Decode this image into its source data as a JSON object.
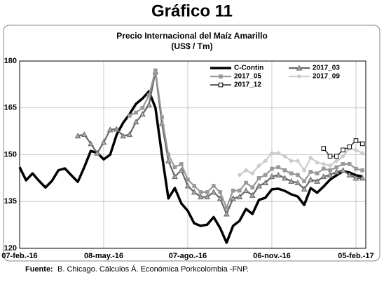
{
  "header": "Gráfico 11",
  "chart_data": {
    "type": "line",
    "title": "Precio Internacional del Maíz Amarillo",
    "subtitle": "(US$ / Tm)",
    "categories": [
      "07-feb.-16",
      null,
      null,
      null,
      null,
      null,
      null,
      null,
      null,
      null,
      null,
      null,
      null,
      "08-may.-16",
      null,
      null,
      null,
      null,
      null,
      null,
      null,
      null,
      null,
      null,
      null,
      null,
      "07-ago.-16",
      null,
      null,
      null,
      null,
      null,
      null,
      null,
      null,
      null,
      null,
      null,
      null,
      "06-nov.-16",
      null,
      null,
      null,
      null,
      null,
      null,
      null,
      null,
      null,
      null,
      null,
      null,
      "05-feb.-17",
      null
    ],
    "ylim": [
      120,
      180
    ],
    "yticks": [
      120,
      135,
      150,
      165,
      180
    ],
    "grid": true,
    "legend": "upper right",
    "series": [
      {
        "name": "C-Contin",
        "color": "#000000",
        "marker": "none",
        "values": [
          146,
          141.8,
          144,
          141.6,
          139.5,
          141.6,
          145,
          145.6,
          143.4,
          141.3,
          146,
          151.2,
          150.6,
          148.5,
          150,
          156.4,
          160.2,
          163,
          166.3,
          168,
          170.3,
          165,
          150,
          136,
          139.3,
          134.4,
          132,
          128,
          127.2,
          127.6,
          130,
          126.5,
          121.8,
          127.2,
          128.8,
          132.6,
          131,
          135.5,
          136.2,
          138.9,
          139.1,
          138.4,
          137.3,
          136.6,
          133.9,
          139.3,
          137.8,
          139.8,
          142,
          143.4,
          144.7,
          144.3,
          143.4,
          143
        ]
      },
      {
        "name": "2017_03",
        "color": "#666666",
        "marker": "triangle",
        "values": [
          null,
          null,
          null,
          null,
          null,
          null,
          null,
          null,
          null,
          156,
          156.5,
          153.5,
          150.5,
          154,
          158,
          158.2,
          156,
          156.5,
          160.5,
          163,
          166,
          176.5,
          160,
          148,
          143,
          145,
          140,
          138,
          136.5,
          136.5,
          138,
          136,
          131,
          136,
          136.5,
          138.5,
          137,
          140,
          141,
          143,
          143.5,
          142.5,
          141.5,
          141,
          139,
          142,
          141.5,
          143,
          143.5,
          144.5,
          145,
          143.5,
          142.5,
          142.5
        ]
      },
      {
        "name": "2017_05",
        "color": "#999999",
        "marker": "square",
        "values": [
          null,
          null,
          null,
          null,
          null,
          null,
          null,
          null,
          null,
          null,
          null,
          null,
          null,
          null,
          null,
          null,
          null,
          162.5,
          163.5,
          165,
          169,
          177,
          162,
          150,
          146,
          147,
          142,
          140,
          138,
          138,
          140,
          138,
          133,
          138.5,
          138.5,
          141,
          139.5,
          142.5,
          143.5,
          145.5,
          146,
          145,
          144,
          143.5,
          141.5,
          144.5,
          144,
          145.5,
          145,
          146,
          147,
          147,
          145.5,
          145
        ]
      },
      {
        "name": "2017_09",
        "color": "#cccccc",
        "marker": "diamond",
        "values": [
          null,
          null,
          null,
          null,
          null,
          null,
          null,
          null,
          null,
          null,
          null,
          null,
          null,
          null,
          null,
          null,
          null,
          null,
          null,
          null,
          null,
          null,
          null,
          null,
          null,
          null,
          null,
          null,
          null,
          null,
          null,
          null,
          null,
          null,
          143.5,
          145,
          144,
          146.5,
          148,
          150.5,
          150.5,
          149.5,
          148,
          148,
          145,
          149,
          147.5,
          147,
          146.5,
          148,
          149.5,
          152,
          151.5,
          150.5
        ]
      },
      {
        "name": "2017_12",
        "color": "#000000",
        "marker": "open-square",
        "values": [
          null,
          null,
          null,
          null,
          null,
          null,
          null,
          null,
          null,
          null,
          null,
          null,
          null,
          null,
          null,
          null,
          null,
          null,
          null,
          null,
          null,
          null,
          null,
          null,
          null,
          null,
          null,
          null,
          null,
          null,
          null,
          null,
          null,
          null,
          null,
          null,
          null,
          null,
          null,
          null,
          null,
          null,
          null,
          null,
          null,
          null,
          null,
          152,
          149.5,
          149.5,
          151.5,
          152.5,
          154.5,
          153.5
        ]
      }
    ],
    "source_label": "Fuente:",
    "source": "B. Chicago. Cálculos Á. Económica Porkcolombia -FNP."
  }
}
